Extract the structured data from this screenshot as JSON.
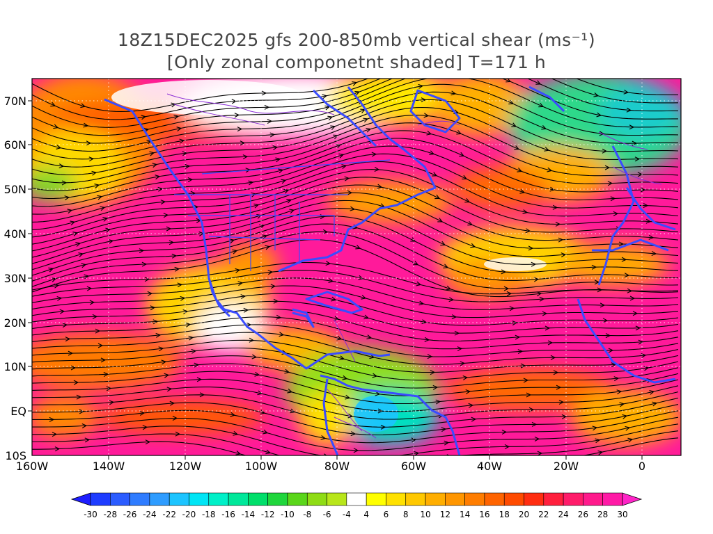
{
  "title": {
    "line1": "18Z15DEC2025 gfs 200-850mb vertical shear (ms⁻¹)",
    "line2": "[Only zonal componetnt shaded] T=171 h"
  },
  "map": {
    "lat_labels": [
      "70N",
      "60N",
      "50N",
      "40N",
      "30N",
      "20N",
      "10N",
      "EQ",
      "10S"
    ],
    "lon_labels": [
      "160W",
      "140W",
      "120W",
      "100W",
      "80W",
      "60W",
      "40W",
      "20W",
      "0"
    ],
    "extent": {
      "lon_min": -160,
      "lon_max": 10,
      "lat_min": -10,
      "lat_max": 75
    },
    "shading_variable": "zonal vertical shear 200-850mb",
    "overlay": "shear streamlines",
    "grid": "dotted"
  },
  "colorbar": {
    "tick_labels": [
      "-30",
      "-28",
      "-26",
      "-24",
      "-22",
      "-20",
      "-18",
      "-16",
      "-14",
      "-12",
      "-10",
      "-8",
      "-6",
      "-4",
      "4",
      "6",
      "8",
      "10",
      "12",
      "14",
      "16",
      "18",
      "20",
      "22",
      "24",
      "26",
      "28",
      "30"
    ],
    "colors": [
      "#1e3cff",
      "#2b5cff",
      "#2f7cff",
      "#2e9cff",
      "#1cc4ff",
      "#00e5f5",
      "#00f0c8",
      "#00e89a",
      "#00df6a",
      "#1fd63c",
      "#5ad61a",
      "#8fdc14",
      "#b8e61a",
      "#ffffff",
      "#ffff00",
      "#ffe100",
      "#ffc800",
      "#ffae00",
      "#ff9600",
      "#ff7d00",
      "#ff6400",
      "#ff4b00",
      "#ff2d10",
      "#ff1f3d",
      "#ff1c6a",
      "#ff1a8c",
      "#ff1aa6"
    ],
    "under_color": "#1e1eff",
    "over_color": "#ff24c8"
  }
}
